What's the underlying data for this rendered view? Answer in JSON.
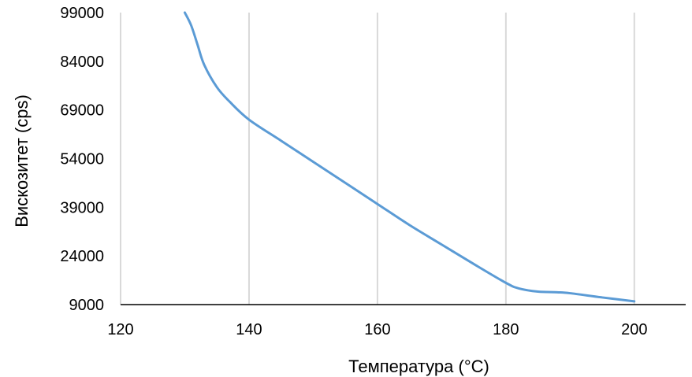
{
  "chart_data": {
    "type": "line",
    "title": "",
    "xlabel": "Температура (°C)",
    "ylabel": "Вискозитет (cps)",
    "xlim": [
      120,
      208
    ],
    "ylim": [
      9000,
      99000
    ],
    "x_ticks": [
      120,
      140,
      160,
      180,
      200
    ],
    "y_ticks": [
      9000,
      24000,
      39000,
      54000,
      69000,
      84000,
      99000
    ],
    "grid": {
      "vertical": true,
      "horizontal": false
    },
    "legend": "none",
    "series": [
      {
        "color": "#5b9bd5",
        "points": [
          {
            "x": 130,
            "y": 99000
          },
          {
            "x": 131,
            "y": 95000
          },
          {
            "x": 132,
            "y": 89000
          },
          {
            "x": 133,
            "y": 83000
          },
          {
            "x": 135,
            "y": 76000
          },
          {
            "x": 137,
            "y": 71500
          },
          {
            "x": 140,
            "y": 66000
          },
          {
            "x": 145,
            "y": 59500
          },
          {
            "x": 150,
            "y": 53000
          },
          {
            "x": 155,
            "y": 46500
          },
          {
            "x": 160,
            "y": 40000
          },
          {
            "x": 165,
            "y": 33500
          },
          {
            "x": 170,
            "y": 27500
          },
          {
            "x": 175,
            "y": 21500
          },
          {
            "x": 180,
            "y": 15700
          },
          {
            "x": 182,
            "y": 14000
          },
          {
            "x": 185,
            "y": 13000
          },
          {
            "x": 188,
            "y": 12800
          },
          {
            "x": 190,
            "y": 12500
          },
          {
            "x": 195,
            "y": 11200
          },
          {
            "x": 200,
            "y": 10000
          }
        ]
      }
    ]
  }
}
